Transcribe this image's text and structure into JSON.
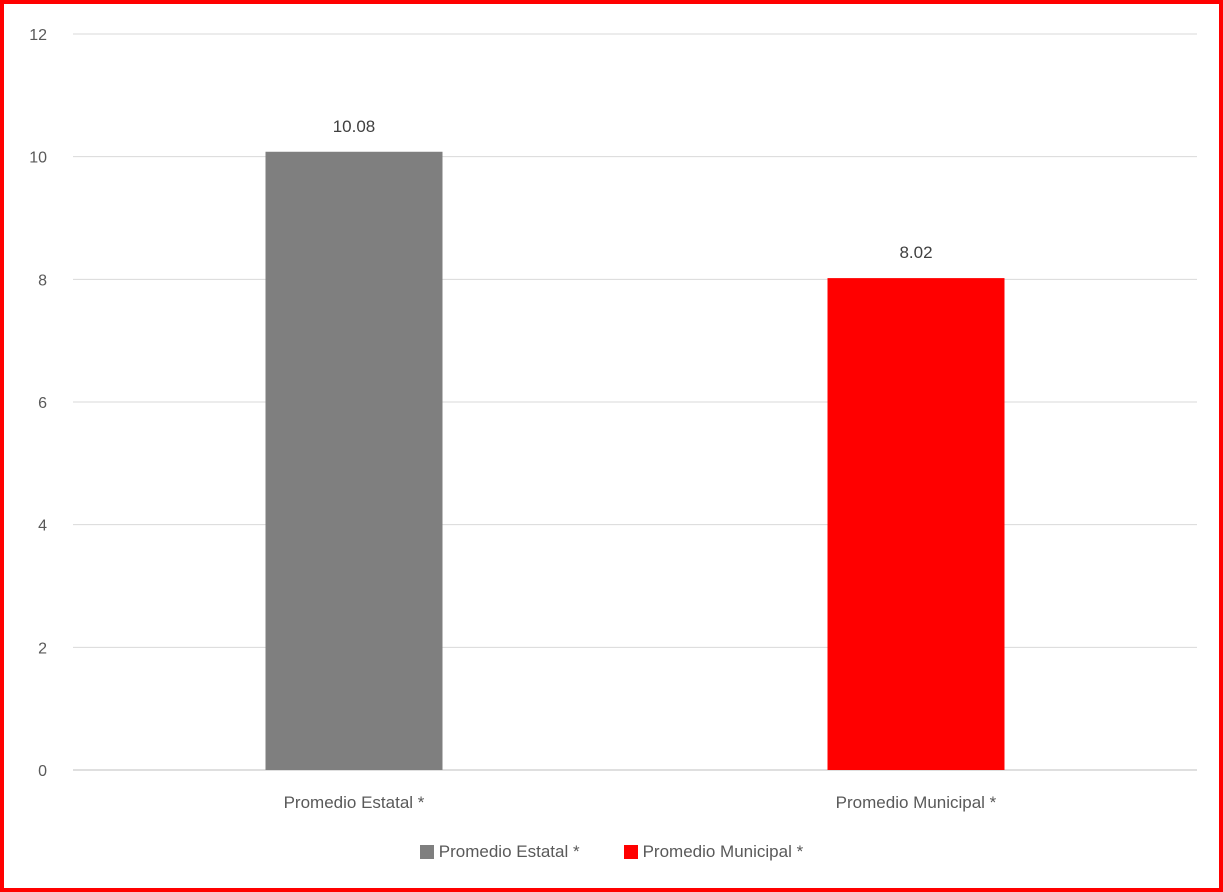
{
  "chart_data": {
    "type": "bar",
    "categories": [
      "Promedio Estatal *",
      "Promedio Municipal *"
    ],
    "values": [
      10.08,
      8.02
    ],
    "value_labels": [
      "10.08",
      "8.02"
    ],
    "colors": [
      "#7f7f7f",
      "#ff0000"
    ],
    "ylim": [
      0,
      12
    ],
    "yticks": [
      0,
      2,
      4,
      6,
      8,
      10,
      12
    ],
    "grid": true,
    "legend_position": "bottom",
    "legend": [
      {
        "label": "Promedio Estatal *",
        "color": "#7f7f7f"
      },
      {
        "label": "Promedio Municipal *",
        "color": "#ff0000"
      }
    ],
    "title": "",
    "xlabel": "",
    "ylabel": ""
  },
  "frame": {
    "border_color": "#ff0000"
  }
}
